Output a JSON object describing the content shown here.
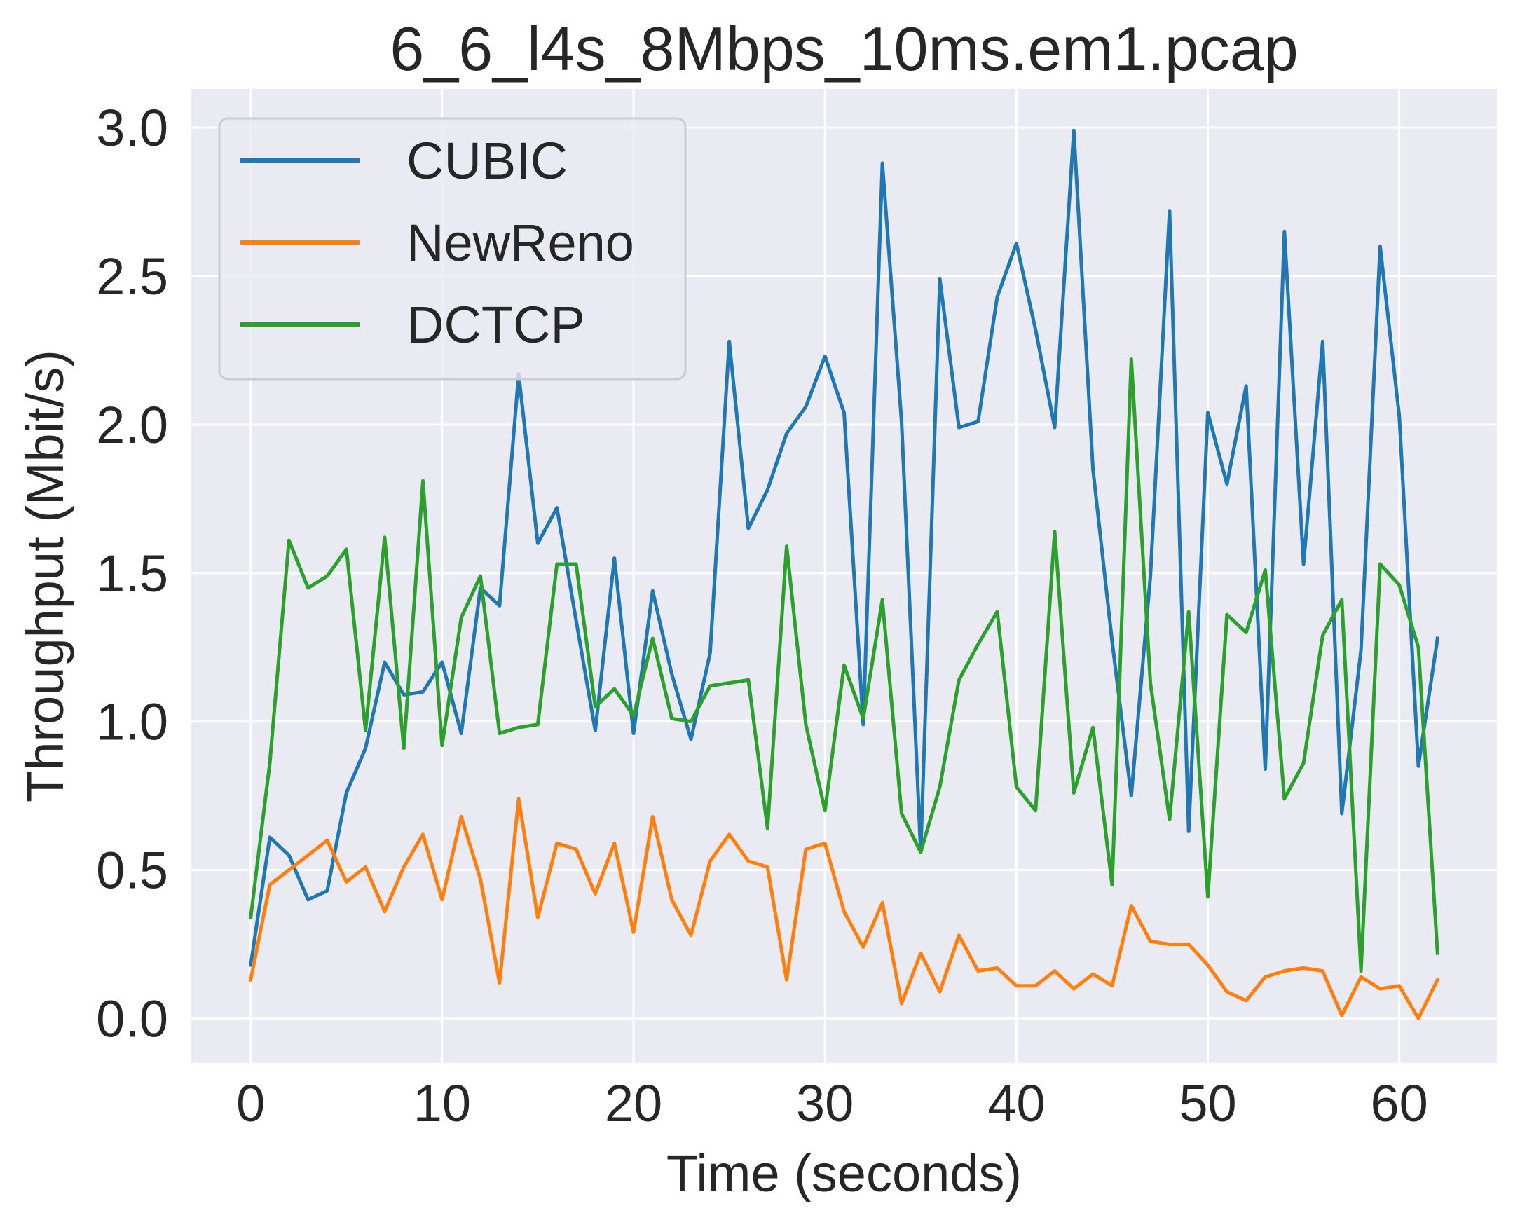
{
  "chart_data": {
    "type": "line",
    "title": "6_6_l4s_8Mbps_10ms.em1.pcap",
    "xlabel": "Time (seconds)",
    "ylabel": "Throughput (Mbit/s)",
    "xlim": [
      -3.1,
      65.1
    ],
    "ylim": [
      -0.15,
      3.13
    ],
    "xticks": [
      0,
      10,
      20,
      30,
      40,
      50,
      60
    ],
    "xtick_labels": [
      "0",
      "10",
      "20",
      "30",
      "40",
      "50",
      "60"
    ],
    "yticks": [
      0.0,
      0.5,
      1.0,
      1.5,
      2.0,
      2.5,
      3.0
    ],
    "ytick_labels": [
      "0.0",
      "0.5",
      "1.0",
      "1.5",
      "2.0",
      "2.5",
      "3.0"
    ],
    "grid": true,
    "legend_position": "top-left",
    "x": [
      0,
      1,
      2,
      3,
      4,
      5,
      6,
      7,
      8,
      9,
      10,
      11,
      12,
      13,
      14,
      15,
      16,
      17,
      18,
      19,
      20,
      21,
      22,
      23,
      24,
      25,
      26,
      27,
      28,
      29,
      30,
      31,
      32,
      33,
      34,
      35,
      36,
      37,
      38,
      39,
      40,
      41,
      42,
      43,
      44,
      45,
      46,
      47,
      48,
      49,
      50,
      51,
      52,
      53,
      54,
      55,
      56,
      57,
      58,
      59,
      60,
      61,
      62
    ],
    "series": [
      {
        "name": "CUBIC",
        "color": "#1f77b4",
        "values": [
          0.18,
          0.61,
          0.55,
          0.4,
          0.43,
          0.76,
          0.91,
          1.2,
          1.09,
          1.1,
          1.2,
          0.96,
          1.45,
          1.39,
          2.17,
          1.6,
          1.72,
          1.34,
          0.97,
          1.55,
          0.96,
          1.44,
          1.16,
          0.94,
          1.23,
          2.28,
          1.65,
          1.78,
          1.97,
          2.06,
          2.23,
          2.04,
          0.99,
          2.88,
          2.01,
          0.56,
          2.49,
          1.99,
          2.01,
          2.43,
          2.61,
          2.32,
          1.99,
          2.99,
          1.85,
          1.27,
          0.75,
          1.49,
          2.72,
          0.63,
          2.04,
          1.8,
          2.13,
          0.84,
          2.65,
          1.53,
          2.28,
          0.69,
          1.24,
          2.6,
          2.03,
          0.85,
          1.28
        ]
      },
      {
        "name": "NewReno",
        "color": "#ff7f0e",
        "values": [
          0.13,
          0.45,
          0.5,
          0.55,
          0.6,
          0.46,
          0.51,
          0.36,
          0.51,
          0.62,
          0.4,
          0.68,
          0.47,
          0.12,
          0.74,
          0.34,
          0.59,
          0.57,
          0.42,
          0.59,
          0.29,
          0.68,
          0.4,
          0.28,
          0.53,
          0.62,
          0.53,
          0.51,
          0.13,
          0.57,
          0.59,
          0.36,
          0.24,
          0.39,
          0.05,
          0.22,
          0.09,
          0.28,
          0.16,
          0.17,
          0.11,
          0.11,
          0.16,
          0.1,
          0.15,
          0.11,
          0.38,
          0.26,
          0.25,
          0.25,
          0.18,
          0.09,
          0.06,
          0.14,
          0.16,
          0.17,
          0.16,
          0.01,
          0.14,
          0.1,
          0.11,
          0.0,
          0.13
        ]
      },
      {
        "name": "DCTCP",
        "color": "#2ca02c",
        "values": [
          0.34,
          0.86,
          1.61,
          1.45,
          1.49,
          1.58,
          0.97,
          1.62,
          0.91,
          1.81,
          0.92,
          1.35,
          1.49,
          0.96,
          0.98,
          0.99,
          1.53,
          1.53,
          1.05,
          1.11,
          1.02,
          1.28,
          1.01,
          1.0,
          1.12,
          1.13,
          1.14,
          0.64,
          1.59,
          0.99,
          0.7,
          1.19,
          1.01,
          1.41,
          0.69,
          0.56,
          0.78,
          1.14,
          1.26,
          1.37,
          0.78,
          0.7,
          1.64,
          0.76,
          0.98,
          0.45,
          2.22,
          1.13,
          0.67,
          1.37,
          0.41,
          1.36,
          1.3,
          1.51,
          0.74,
          0.86,
          1.29,
          1.41,
          0.16,
          1.53,
          1.46,
          1.25,
          0.22
        ]
      }
    ]
  }
}
